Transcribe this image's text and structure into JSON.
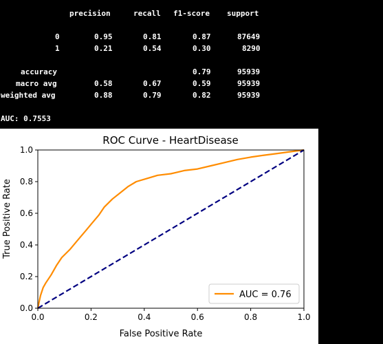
{
  "report": {
    "header": [
      "precision",
      "recall",
      "f1-score",
      "support"
    ],
    "rows": [
      {
        "label": "0",
        "precision": "0.95",
        "recall": "0.81",
        "f1": "0.87",
        "support": "87649"
      },
      {
        "label": "1",
        "precision": "0.21",
        "recall": "0.54",
        "f1": "0.30",
        "support": "8290"
      },
      {
        "label": "accuracy",
        "precision": "",
        "recall": "",
        "f1": "0.79",
        "support": "95939"
      },
      {
        "label": "macro avg",
        "precision": "0.58",
        "recall": "0.67",
        "f1": "0.59",
        "support": "95939"
      },
      {
        "label": "weighted avg",
        "precision": "0.88",
        "recall": "0.79",
        "f1": "0.82",
        "support": "95939"
      }
    ],
    "auc_line": "AUC: 0.7553"
  },
  "chart_data": {
    "type": "line",
    "title": "ROC Curve - HeartDisease",
    "xlabel": "False Positive Rate",
    "ylabel": "True Positive Rate",
    "xlim": [
      0,
      1
    ],
    "ylim": [
      0,
      1
    ],
    "xticks": [
      "0.0",
      "0.2",
      "0.4",
      "0.6",
      "0.8",
      "1.0"
    ],
    "yticks": [
      "0.0",
      "0.2",
      "0.4",
      "0.6",
      "0.8",
      "1.0"
    ],
    "grid": false,
    "legend_position": "lower-right",
    "series": [
      {
        "name": "AUC = 0.76",
        "color": "#ff8c00",
        "style": "solid",
        "x": [
          0.0,
          0.005,
          0.01,
          0.02,
          0.03,
          0.05,
          0.07,
          0.09,
          0.12,
          0.15,
          0.18,
          0.2,
          0.23,
          0.25,
          0.28,
          0.31,
          0.34,
          0.37,
          0.41,
          0.45,
          0.5,
          0.55,
          0.6,
          0.65,
          0.7,
          0.75,
          0.8,
          0.85,
          0.9,
          0.95,
          1.0
        ],
        "y": [
          0.0,
          0.04,
          0.08,
          0.13,
          0.16,
          0.21,
          0.27,
          0.32,
          0.37,
          0.43,
          0.49,
          0.53,
          0.59,
          0.64,
          0.69,
          0.73,
          0.77,
          0.8,
          0.82,
          0.84,
          0.85,
          0.87,
          0.88,
          0.9,
          0.92,
          0.94,
          0.955,
          0.967,
          0.978,
          0.989,
          1.0
        ]
      },
      {
        "name": "",
        "color": "#000080",
        "style": "dashed",
        "x": [
          0,
          1
        ],
        "y": [
          0,
          1
        ]
      }
    ]
  }
}
